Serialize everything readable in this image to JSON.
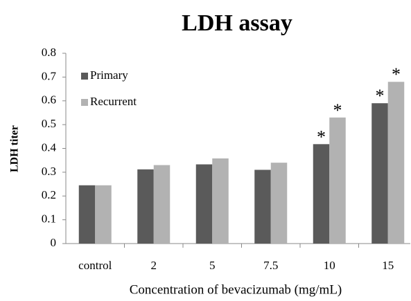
{
  "chart_data": {
    "type": "bar",
    "title": "LDH assay",
    "xlabel": "Concentration of bevacizumab (mg/mL)",
    "ylabel": "LDH titer",
    "categories": [
      "control",
      "2",
      "5",
      "7.5",
      "10",
      "15"
    ],
    "series": [
      {
        "name": "Primary",
        "color": "#5a5a5a",
        "values": [
          0.245,
          0.312,
          0.333,
          0.31,
          0.418,
          0.59
        ]
      },
      {
        "name": "Recurrent",
        "color": "#b2b2b2",
        "values": [
          0.245,
          0.33,
          0.358,
          0.34,
          0.53,
          0.68
        ]
      }
    ],
    "annotations": [
      {
        "text": "*",
        "category": 4,
        "series": 0
      },
      {
        "text": "*",
        "category": 4,
        "series": 1
      },
      {
        "text": "*",
        "category": 5,
        "series": 0
      },
      {
        "text": "*",
        "category": 5,
        "series": 1
      }
    ],
    "ylim": [
      0,
      0.8
    ],
    "yticks": [
      0,
      0.1,
      0.2,
      0.3,
      0.4,
      0.5,
      0.6,
      0.7,
      0.8
    ],
    "grid": false,
    "legend": "upper left"
  }
}
